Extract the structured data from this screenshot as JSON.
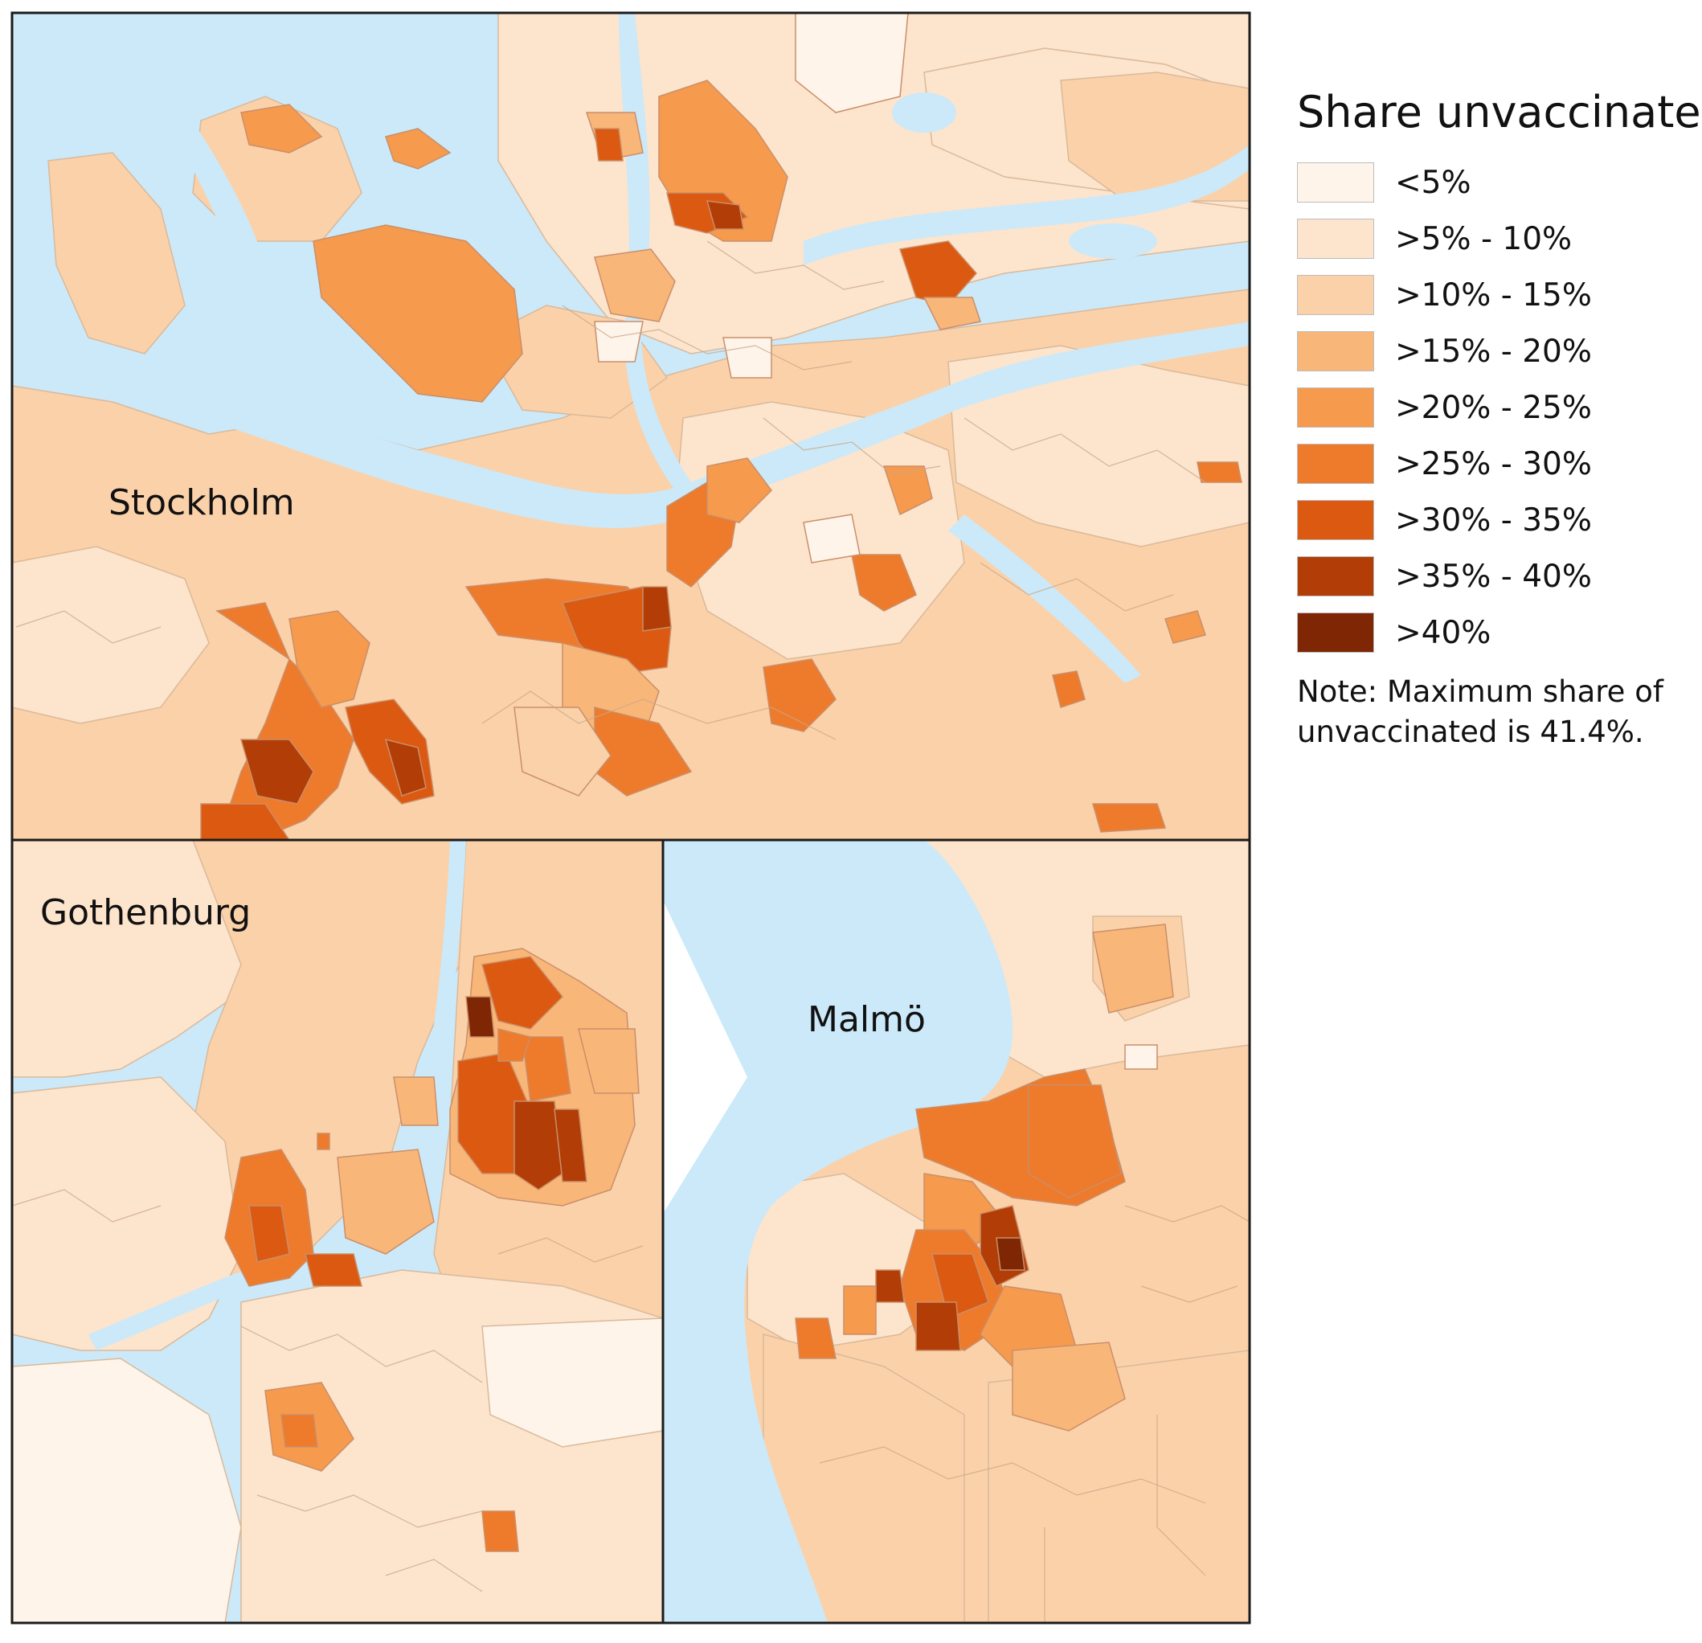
{
  "panels": {
    "stockholm": {
      "label": "Stockholm"
    },
    "gothenburg": {
      "label": "Gothenburg"
    },
    "malmo": {
      "label": "Malmö"
    }
  },
  "legend": {
    "title": "Share unvaccinated",
    "classes": [
      {
        "label": "<5%",
        "color": "#fef4ea"
      },
      {
        "label": ">5% - 10%",
        "color": "#fde4cc"
      },
      {
        "label": ">10% - 15%",
        "color": "#fbd1a9"
      },
      {
        "label": ">15% - 20%",
        "color": "#f9b679"
      },
      {
        "label": ">20% - 25%",
        "color": "#f69a4d"
      },
      {
        "label": ">25% - 30%",
        "color": "#ee7a2c"
      },
      {
        "label": ">30% - 35%",
        "color": "#db5911"
      },
      {
        "label": ">35% - 40%",
        "color": "#b23d06"
      },
      {
        "label": ">40%",
        "color": "#7f2704"
      }
    ],
    "note": "Note: Maximum share of unvaccinated is 41.4%."
  },
  "colors": {
    "water": "#cbe9f9",
    "border": "#1a1a1a"
  }
}
